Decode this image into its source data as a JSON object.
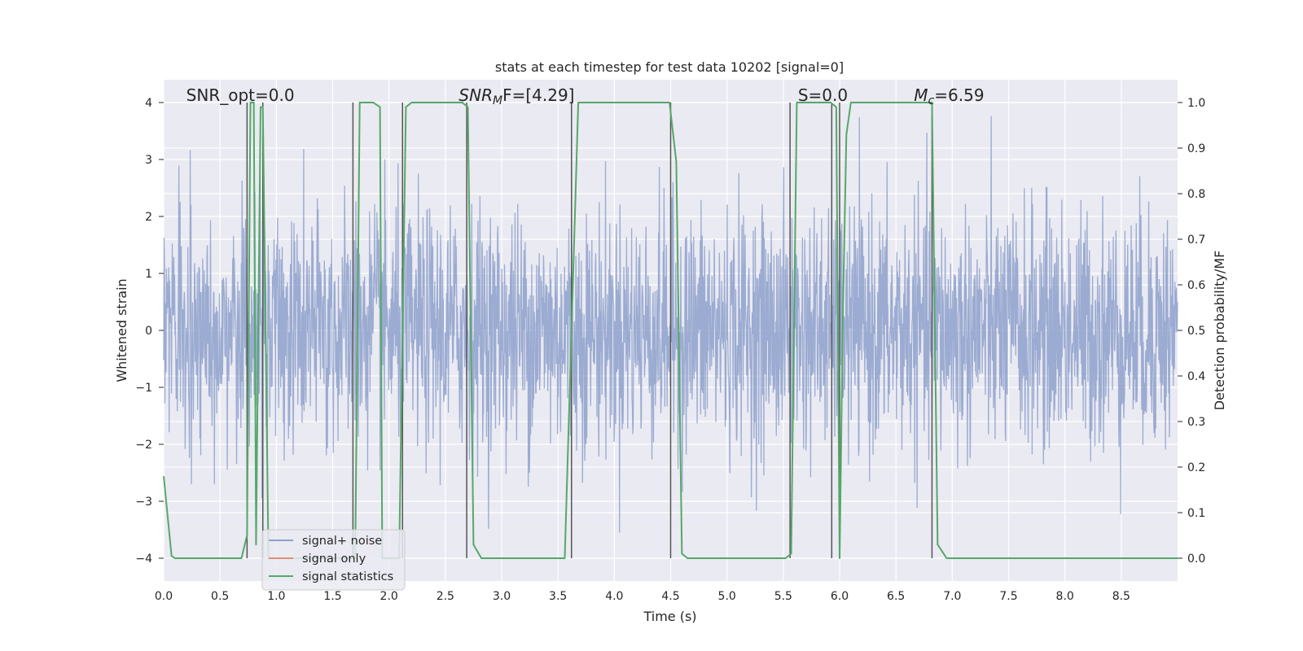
{
  "chart_data": {
    "type": "line",
    "title": "stats at each timestep for test data 10202 [signal=0]",
    "xlabel": "Time (s)",
    "ylabel_left": "Whitened strain",
    "ylabel_right": "Detection probability/MF",
    "xlim": [
      0.0,
      9.0
    ],
    "ylim_left": [
      -4.4,
      4.4
    ],
    "ylim_right": [
      -0.05,
      1.05
    ],
    "xticks": [
      "0.0",
      "0.5",
      "1.0",
      "1.5",
      "2.0",
      "2.5",
      "3.0",
      "3.5",
      "4.0",
      "4.5",
      "5.0",
      "5.5",
      "6.0",
      "6.5",
      "7.0",
      "7.5",
      "8.0",
      "8.5"
    ],
    "xtick_values": [
      0.0,
      0.5,
      1.0,
      1.5,
      2.0,
      2.5,
      3.0,
      3.5,
      4.0,
      4.5,
      5.0,
      5.5,
      6.0,
      6.5,
      7.0,
      7.5,
      8.0,
      8.5
    ],
    "yticks_left": [
      "−4",
      "−3",
      "−2",
      "−1",
      "0",
      "1",
      "2",
      "3",
      "4"
    ],
    "ytick_values_left": [
      -4,
      -3,
      -2,
      -1,
      0,
      1,
      2,
      3,
      4
    ],
    "yticks_right": [
      "0.0",
      "0.1",
      "0.2",
      "0.3",
      "0.4",
      "0.5",
      "0.6",
      "0.7",
      "0.8",
      "0.9",
      "1.0"
    ],
    "ytick_values_right": [
      0.0,
      0.1,
      0.2,
      0.3,
      0.4,
      0.5,
      0.6,
      0.7,
      0.8,
      0.9,
      1.0
    ],
    "grid": true,
    "legend_position": "lower-left",
    "annotations": [
      {
        "text": "SNR_opt=0.0",
        "x": 0.2
      },
      {
        "text_main": "SNR",
        "text_sub": "M",
        "text_rest": "F=[4.29]",
        "x": 2.62
      },
      {
        "text": "S=0.0",
        "x": 5.63
      },
      {
        "text_main": "M",
        "text_sub": "c",
        "text_rest": "=6.59",
        "x": 6.66
      }
    ],
    "series": [
      {
        "name": "signal+ noise",
        "color": "#8da0cb",
        "style": "noise",
        "description_amplitude_rms": 1.0
      },
      {
        "name": "signal only",
        "color": "#e08f73",
        "values": []
      },
      {
        "name": "signal statistics",
        "color": "#55a868",
        "axis": "right",
        "x": [
          0.0,
          0.07,
          0.1,
          0.15,
          0.3,
          0.5,
          0.69,
          0.74,
          0.77,
          0.8,
          0.82,
          0.86,
          0.88,
          0.93,
          1.05,
          1.2,
          1.4,
          1.55,
          1.64,
          1.7,
          1.74,
          1.86,
          1.92,
          1.94,
          1.98,
          2.03,
          2.09,
          2.15,
          2.2,
          2.3,
          2.5,
          2.65,
          2.7,
          2.75,
          2.82,
          3.0,
          3.2,
          3.4,
          3.56,
          3.62,
          3.68,
          3.8,
          4.0,
          4.2,
          4.4,
          4.49,
          4.55,
          4.6,
          4.65,
          4.8,
          5.0,
          5.2,
          5.4,
          5.52,
          5.57,
          5.62,
          5.67,
          5.8,
          5.92,
          5.97,
          6.0,
          6.03,
          6.06,
          6.1,
          6.13,
          6.3,
          6.5,
          6.7,
          6.82,
          6.87,
          6.95,
          7.1,
          7.5,
          8.0,
          8.5,
          9.0
        ],
        "y": [
          0.18,
          0.005,
          0.0,
          0.0,
          0.0,
          0.0,
          0.0,
          0.05,
          1.0,
          1.0,
          0.03,
          0.99,
          0.99,
          0.0,
          0.0,
          0.0,
          0.0,
          0.0,
          0.0,
          0.0,
          1.0,
          1.0,
          0.99,
          0.0,
          0.0,
          0.0,
          0.0,
          0.99,
          1.0,
          1.0,
          1.0,
          1.0,
          0.99,
          0.03,
          0.0,
          0.0,
          0.0,
          0.0,
          0.0,
          0.5,
          1.0,
          1.0,
          1.0,
          1.0,
          1.0,
          1.0,
          0.87,
          0.01,
          0.0,
          0.0,
          0.0,
          0.0,
          0.0,
          0.0,
          0.01,
          1.0,
          1.0,
          1.0,
          1.0,
          0.99,
          0.0,
          0.55,
          0.93,
          1.0,
          1.0,
          1.0,
          1.0,
          1.0,
          1.0,
          0.03,
          0.0,
          0.0,
          0.0,
          0.0,
          0.0,
          0.0
        ]
      }
    ],
    "vertical_lines": [
      0.74,
      0.88,
      1.68,
      2.12,
      2.69,
      3.62,
      4.5,
      5.56,
      5.93,
      6.0,
      6.82
    ]
  }
}
